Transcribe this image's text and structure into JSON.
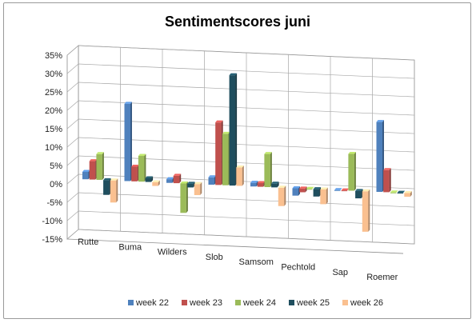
{
  "chart_data": {
    "type": "bar",
    "title": "Sentimentscores  juni",
    "categories": [
      "Rutte",
      "Buma",
      "Wilders",
      "Slob",
      "Samsom",
      "Pechtold",
      "Sap",
      "Roemer"
    ],
    "yticks": [
      "35%",
      "30%",
      "25%",
      "20%",
      "15%",
      "10%",
      "5%",
      "0%",
      "-5%",
      "-10%",
      "-15%"
    ],
    "ylim": [
      -15,
      35
    ],
    "grid": true,
    "legend_position": "bottom",
    "series": [
      {
        "name": "week 22",
        "color": "#4f81bd",
        "values": [
          2,
          21,
          1,
          2,
          1,
          -2,
          0,
          19
        ]
      },
      {
        "name": "week 23",
        "color": "#c0504d",
        "values": [
          5,
          4,
          2,
          17,
          1,
          -1,
          0,
          6
        ]
      },
      {
        "name": "week 24",
        "color": "#9bbb59",
        "values": [
          7,
          7,
          -8,
          14,
          9,
          0,
          10,
          0
        ]
      },
      {
        "name": "week 25",
        "color": "#1f4e5e",
        "values": [
          -4,
          1,
          -1,
          30,
          1,
          -2,
          -2,
          0
        ]
      },
      {
        "name": "week 26",
        "color": "#fac090",
        "values": [
          -6,
          -1,
          -3,
          5,
          -5,
          -4,
          -11,
          -1
        ]
      }
    ]
  }
}
